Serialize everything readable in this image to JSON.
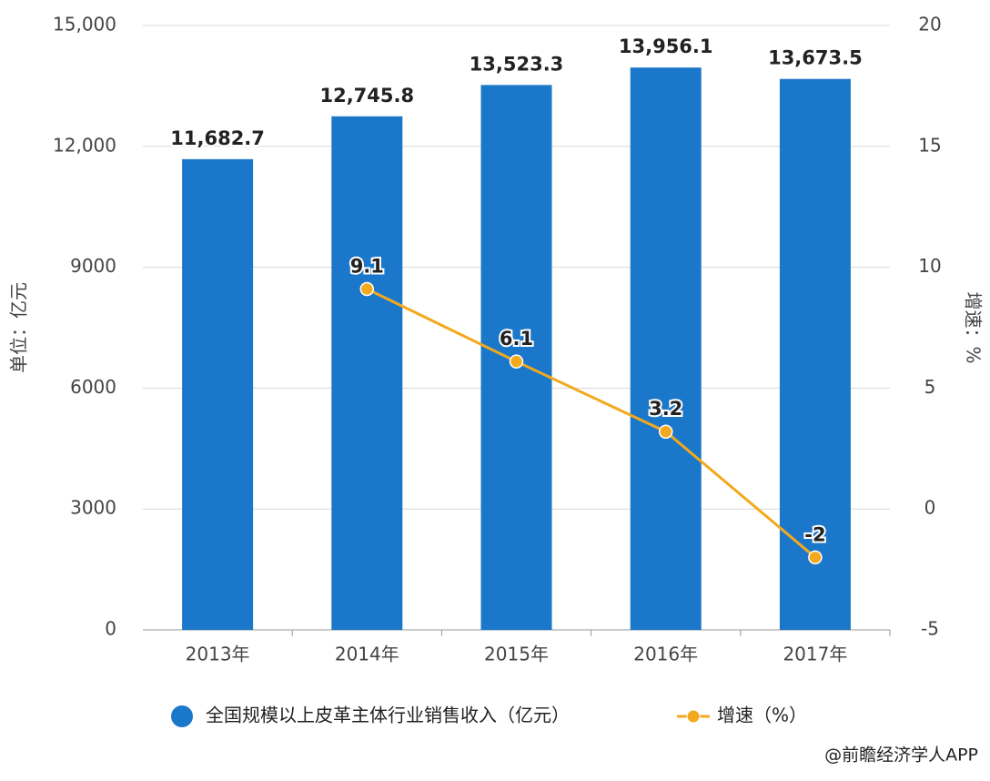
{
  "chart_data": {
    "type": "bar",
    "categories": [
      "2013年",
      "2014年",
      "2015年",
      "2016年",
      "2017年"
    ],
    "series": [
      {
        "name": "全国规模以上皮革主体行业销售收入（亿元）",
        "type": "bar",
        "color": "#1b77c9",
        "values": [
          11682.7,
          12745.8,
          13523.3,
          13956.1,
          13673.5
        ],
        "value_labels": [
          "11,682.7",
          "12,745.8",
          "13,523.3",
          "13,956.1",
          "13,673.5"
        ]
      },
      {
        "name": "增速（%）",
        "type": "line",
        "axis": "y2",
        "color": "#f2a91e",
        "values": [
          null,
          9.1,
          6.1,
          3.2,
          -2
        ]
      }
    ],
    "ylabel": "单位：亿元",
    "y2label": "增速：%",
    "ylim": [
      0,
      15000
    ],
    "yticks": [
      0,
      3000,
      6000,
      9000,
      {
        "value": 12000,
        "label": "12,000"
      },
      {
        "value": 15000,
        "label": "15,000"
      }
    ],
    "y2lim": [
      -5,
      20
    ],
    "y2ticks": [
      -5,
      0,
      5,
      10,
      15,
      20
    ],
    "grid": true,
    "source": "@前瞻经济学人APP"
  }
}
